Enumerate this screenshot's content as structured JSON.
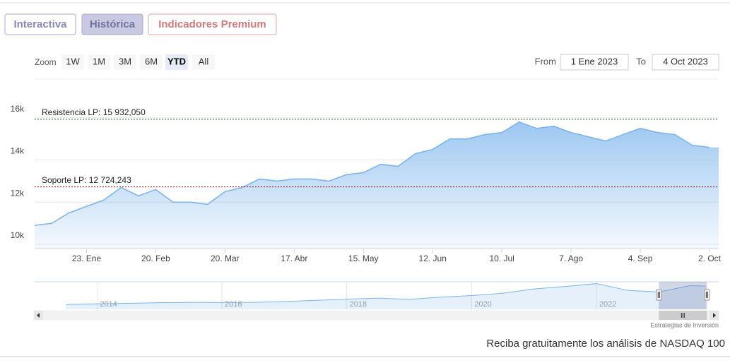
{
  "tabs": [
    "Interactiva",
    "Histórica",
    "Indicadores Premium"
  ],
  "range_selector": {
    "zoom_label": "Zoom",
    "buttons": [
      "1W",
      "1M",
      "3M",
      "6M",
      "YTD",
      "All"
    ],
    "selected": 4,
    "from_label": "From",
    "from": "1 Ene 2023",
    "to_label": "To",
    "to": "4 Oct 2023"
  },
  "chart_data": {
    "type": "area",
    "categories": [
      null,
      null,
      null,
      "23. Ene",
      null,
      null,
      null,
      "20. Feb",
      null,
      null,
      null,
      "20. Mar",
      null,
      null,
      null,
      "17. Abr",
      null,
      null,
      null,
      "15. May",
      null,
      null,
      null,
      "12. Jun",
      null,
      null,
      null,
      "10. Jul",
      null,
      null,
      null,
      "7. Ago",
      null,
      null,
      null,
      "4. Sep",
      null,
      null,
      null,
      "2. Oct"
    ],
    "values": [
      10900,
      11000,
      11500,
      11800,
      12100,
      12700,
      12300,
      12600,
      12000,
      12000,
      11900,
      12500,
      12700,
      13100,
      13000,
      13100,
      13100,
      13000,
      13300,
      13400,
      13800,
      13700,
      14300,
      14500,
      15000,
      15000,
      15200,
      15300,
      15800,
      15500,
      15600,
      15300,
      15100,
      14900,
      15200,
      15500,
      15300,
      15200,
      14700,
      14600
    ],
    "color": "#7cb5ec",
    "ylim": [
      9800,
      17500
    ],
    "yticks": [
      {
        "value": 10000,
        "label": "10k"
      },
      {
        "value": 12000,
        "label": "12k"
      },
      {
        "value": 14000,
        "label": "14k"
      },
      {
        "value": 16000,
        "label": "16k"
      }
    ],
    "grid": true,
    "plot_lines": [
      {
        "value": 15932.05,
        "label": "Resistencia LP: 15 932,050",
        "color": "#2e5a2e"
      },
      {
        "value": 12724.243,
        "label": "Soporte LP: 12 724,243",
        "color": "#8b0000"
      }
    ],
    "navigator": {
      "x": [
        2013.5,
        2014,
        2014.5,
        2015,
        2015.5,
        2016,
        2016.5,
        2017,
        2017.5,
        2018,
        2018.5,
        2019,
        2019.5,
        2020,
        2020.5,
        2021,
        2021.5,
        2022,
        2022.5,
        2023,
        2023.5,
        2023.75
      ],
      "values": [
        3000,
        3500,
        3800,
        4200,
        4400,
        4300,
        4400,
        4900,
        5700,
        6400,
        7100,
        6300,
        7700,
        8700,
        10200,
        12900,
        14500,
        16300,
        12000,
        11000,
        15000,
        14700
      ],
      "xlim": [
        2013,
        2023.8
      ],
      "ylim": [
        0,
        17000
      ],
      "xticks": [
        2014,
        2016,
        2018,
        2020,
        2022
      ],
      "selection": [
        2023,
        2023.77
      ]
    },
    "credits": "Estrategias de Inversión"
  },
  "footer": "Reciba gratuitamente los análisis de NASDAQ 100"
}
